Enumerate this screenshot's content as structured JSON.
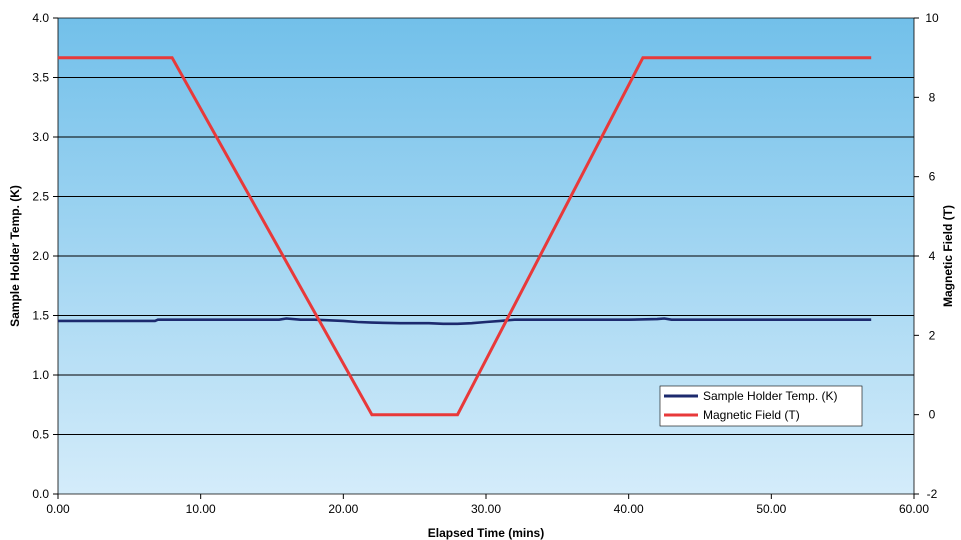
{
  "chart_data": {
    "type": "line",
    "title": "",
    "xlabel": "Elapsed Time (mins)",
    "ylabel_left": "Sample Holder Temp. (K)",
    "ylabel_right": "Magnetic Field (T)",
    "xlim": [
      0,
      60
    ],
    "ylim_left": [
      0,
      4
    ],
    "ylim_right": [
      -2,
      10
    ],
    "x_ticks": [
      "0.00",
      "10.00",
      "20.00",
      "30.00",
      "40.00",
      "50.00",
      "60.00"
    ],
    "x_tick_values": [
      0,
      10,
      20,
      30,
      40,
      50,
      60
    ],
    "y_left_ticks": [
      "0.0",
      "0.5",
      "1.0",
      "1.5",
      "2.0",
      "2.5",
      "3.0",
      "3.5",
      "4.0"
    ],
    "y_left_tick_values": [
      0,
      0.5,
      1,
      1.5,
      2,
      2.5,
      3,
      3.5,
      4
    ],
    "y_right_ticks": [
      "-2",
      "0",
      "2",
      "4",
      "6",
      "8",
      "10"
    ],
    "y_right_tick_values": [
      -2,
      0,
      2,
      4,
      6,
      8,
      10
    ],
    "grid": "horizontal",
    "legend_position": "bottom-right",
    "background_gradient": [
      "#72c0ea",
      "#d4ecfa"
    ],
    "series": [
      {
        "name": "Sample Holder Temp. (K)",
        "axis": "left",
        "color": "#1c2a6e",
        "x": [
          0,
          6.8,
          7,
          15.5,
          16,
          17,
          18,
          19,
          20,
          21,
          22,
          24,
          26,
          27,
          28,
          29,
          30,
          31,
          32,
          40,
          42,
          42.5,
          43,
          57
        ],
        "y": [
          1.455,
          1.455,
          1.465,
          1.465,
          1.475,
          1.465,
          1.465,
          1.46,
          1.455,
          1.445,
          1.44,
          1.435,
          1.435,
          1.43,
          1.43,
          1.435,
          1.445,
          1.455,
          1.465,
          1.465,
          1.47,
          1.475,
          1.465,
          1.465
        ]
      },
      {
        "name": "Magnetic Field (T)",
        "axis": "right",
        "color": "#e8393a",
        "x": [
          0,
          8,
          22,
          28,
          41,
          57
        ],
        "y": [
          9,
          9,
          0,
          0,
          9,
          9
        ]
      }
    ]
  }
}
